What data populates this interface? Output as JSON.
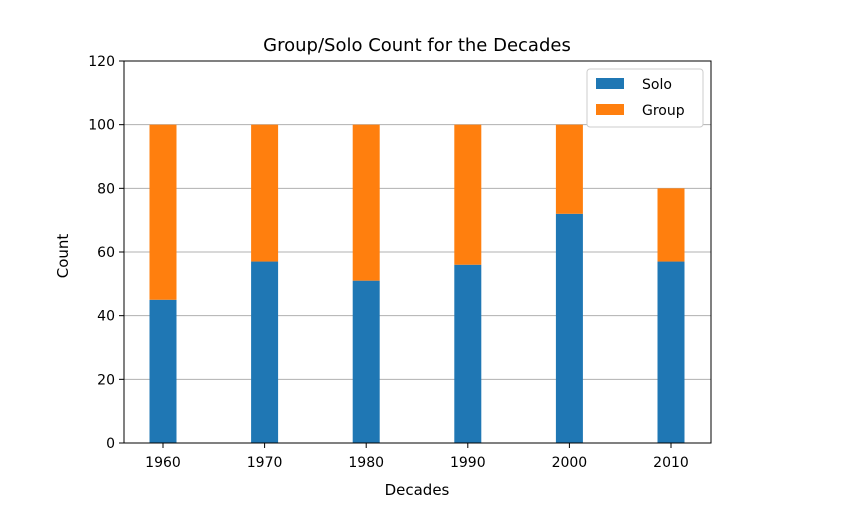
{
  "chart_data": {
    "type": "bar",
    "stacked": true,
    "title": "Group/Solo Count for the Decades",
    "xlabel": "Decades",
    "ylabel": "Count",
    "categories": [
      "1960",
      "1970",
      "1980",
      "1990",
      "2000",
      "2010"
    ],
    "series": [
      {
        "name": "Solo",
        "color": "#1f77b4",
        "values": [
          45,
          57,
          51,
          56,
          72,
          57
        ]
      },
      {
        "name": "Group",
        "color": "#ff7f0e",
        "values": [
          55,
          43,
          49,
          44,
          28,
          23
        ]
      }
    ],
    "ylim": [
      0,
      120
    ],
    "yticks": [
      "0",
      "20",
      "40",
      "60",
      "80",
      "100",
      "120"
    ],
    "grid": "horizontal",
    "legend_position": "top-right"
  }
}
